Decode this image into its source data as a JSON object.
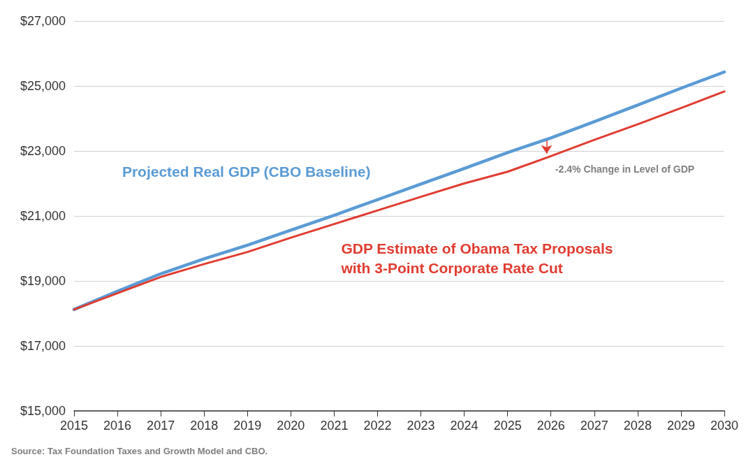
{
  "chart_data": {
    "type": "line",
    "x": [
      2015,
      2016,
      2017,
      2018,
      2019,
      2020,
      2021,
      2022,
      2023,
      2024,
      2025,
      2026,
      2027,
      2028,
      2029,
      2030
    ],
    "series": [
      {
        "name": "Projected Real GDP (CBO Baseline)",
        "color": "#5b9bd5",
        "values": [
          18120,
          18680,
          19220,
          19680,
          20100,
          20560,
          21020,
          21500,
          21980,
          22460,
          22950,
          23400,
          23900,
          24410,
          24930,
          25430
        ]
      },
      {
        "name": "GDP Estimate of Obama Tax Proposals with 3-Point Corporate Rate Cut",
        "color": "#e03c31",
        "values": [
          18120,
          18620,
          19120,
          19520,
          19890,
          20330,
          20750,
          21170,
          21590,
          22000,
          22360,
          22840,
          23340,
          23820,
          24320,
          24830
        ]
      }
    ],
    "xlim": [
      2015,
      2030
    ],
    "xticks": [
      2015,
      2016,
      2017,
      2018,
      2019,
      2020,
      2021,
      2022,
      2023,
      2024,
      2025,
      2026,
      2027,
      2028,
      2029,
      2030
    ],
    "ylim": [
      15000,
      27000
    ],
    "yticks": [
      {
        "value": 15000,
        "label": "$15,000"
      },
      {
        "value": 17000,
        "label": "$17,000"
      },
      {
        "value": 19000,
        "label": "$19,000"
      },
      {
        "value": 21000,
        "label": "$21,000"
      },
      {
        "value": 23000,
        "label": "$23,000"
      },
      {
        "value": 25000,
        "label": "$25,000"
      },
      {
        "value": 27000,
        "label": "$27,000"
      }
    ],
    "grid": "y",
    "legend": false,
    "marker": "none",
    "line_style": "solid",
    "annotations": [
      {
        "text": "-2.4% Change in Level of GDP",
        "x": 2026,
        "y": 22840
      },
      "Source: Tax Foundation Taxes and Growth Model and CBO."
    ]
  }
}
